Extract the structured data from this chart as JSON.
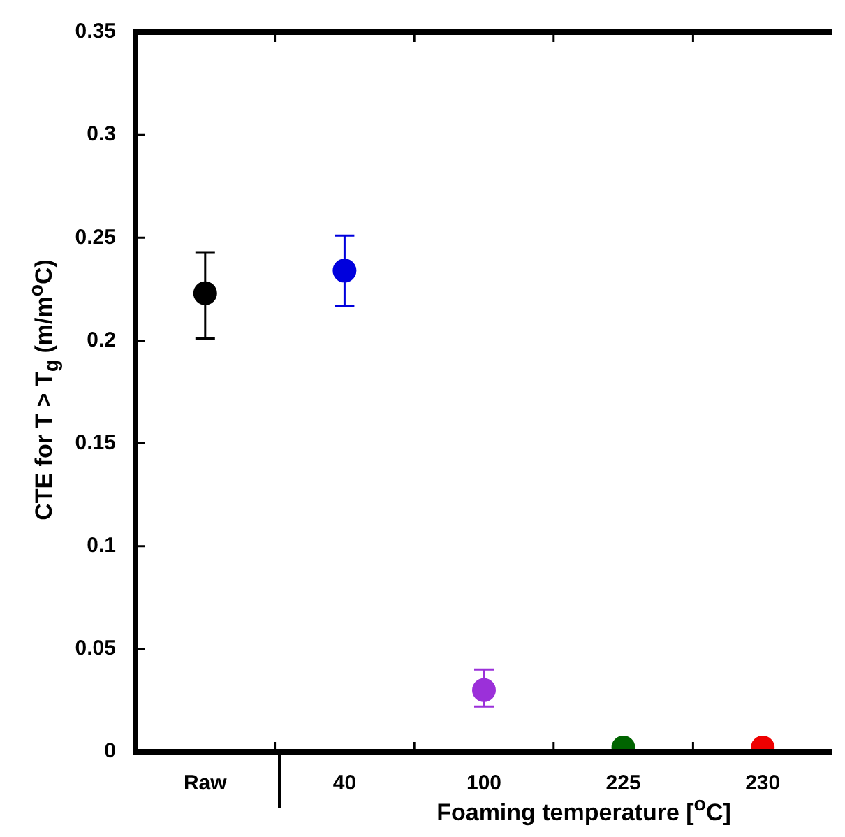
{
  "chart_data": {
    "type": "scatter",
    "xlabel": "Foaming temperature [$^{o}$C]",
    "ylabel": "CTE for T > T$_{g}$ (m/m$^{o}$C)",
    "categories": [
      "Raw",
      "40",
      "100",
      "225",
      "230"
    ],
    "values": [
      0.223,
      0.234,
      0.03,
      0.002,
      0.002
    ],
    "errors": [
      [
        0.201,
        0.243
      ],
      [
        0.217,
        0.251
      ],
      [
        0.022,
        0.04
      ],
      null,
      null
    ],
    "colors": [
      "#000000",
      "#0000dd",
      "#9b30d9",
      "#006400",
      "#ee0000"
    ],
    "ylim": [
      0,
      0.35
    ],
    "yticks": [
      0,
      0.05,
      0.1,
      0.15,
      0.2,
      0.25,
      0.3,
      0.35
    ],
    "marker": "circle",
    "grid": false,
    "legend": false
  }
}
